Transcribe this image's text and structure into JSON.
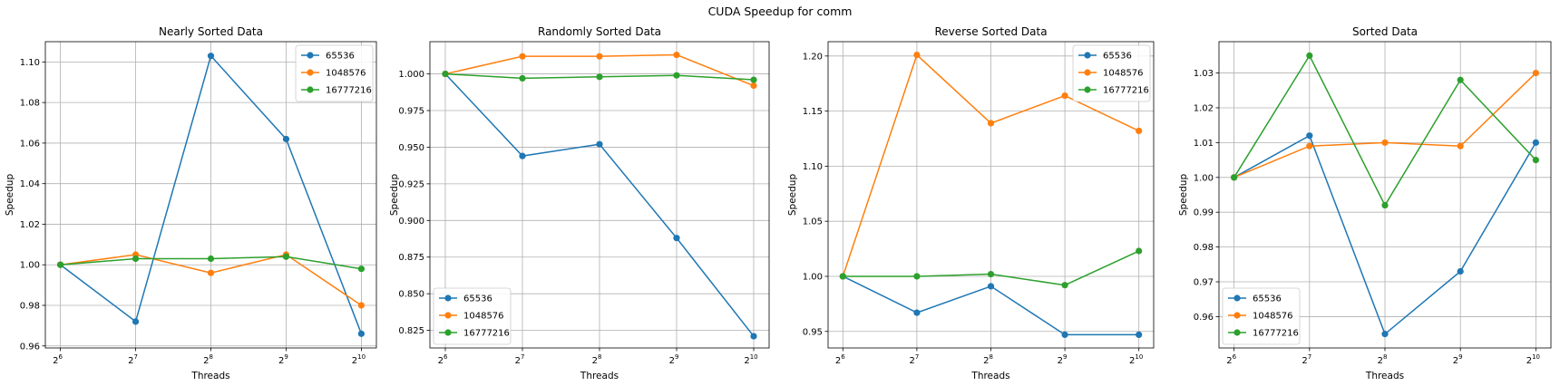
{
  "figure": {
    "title": "CUDA Speedup for comm"
  },
  "chart_data": [
    {
      "type": "line",
      "title": "Nearly Sorted Data",
      "xlabel": "Threads",
      "ylabel": "Speedup",
      "x": [
        6,
        7,
        8,
        9,
        10
      ],
      "x_base": "2",
      "x_scale": "log2",
      "ylim": [
        0.959,
        1.11
      ],
      "yticks": [
        0.96,
        0.98,
        1.0,
        1.02,
        1.04,
        1.06,
        1.08,
        1.1
      ],
      "ytick_labels": [
        "0.96",
        "0.98",
        "1.00",
        "1.02",
        "1.04",
        "1.06",
        "1.08",
        "1.10"
      ],
      "grid": true,
      "legend_position": "top-right",
      "series": [
        {
          "name": "65536",
          "color": "#1f77b4",
          "values": [
            1.0,
            0.972,
            1.103,
            1.062,
            0.966
          ]
        },
        {
          "name": "1048576",
          "color": "#ff7f0e",
          "values": [
            1.0,
            1.005,
            0.996,
            1.005,
            0.98
          ]
        },
        {
          "name": "16777216",
          "color": "#2ca02c",
          "values": [
            1.0,
            1.003,
            1.003,
            1.004,
            0.998
          ]
        }
      ]
    },
    {
      "type": "line",
      "title": "Randomly Sorted Data",
      "xlabel": "Threads",
      "ylabel": "Speedup",
      "x": [
        6,
        7,
        8,
        9,
        10
      ],
      "x_base": "2",
      "x_scale": "log2",
      "ylim": [
        0.813,
        1.022
      ],
      "yticks": [
        0.825,
        0.85,
        0.875,
        0.9,
        0.925,
        0.95,
        0.975,
        1.0
      ],
      "ytick_labels": [
        "0.825",
        "0.850",
        "0.875",
        "0.900",
        "0.925",
        "0.950",
        "0.975",
        "1.000"
      ],
      "grid": true,
      "legend_position": "bottom-left",
      "series": [
        {
          "name": "65536",
          "color": "#1f77b4",
          "values": [
            1.0,
            0.944,
            0.952,
            0.888,
            0.821
          ]
        },
        {
          "name": "1048576",
          "color": "#ff7f0e",
          "values": [
            1.0,
            1.012,
            1.012,
            1.013,
            0.992
          ]
        },
        {
          "name": "16777216",
          "color": "#2ca02c",
          "values": [
            1.0,
            0.997,
            0.998,
            0.999,
            0.996
          ]
        }
      ]
    },
    {
      "type": "line",
      "title": "Reverse Sorted Data",
      "xlabel": "Threads",
      "ylabel": "Speedup",
      "x": [
        6,
        7,
        8,
        9,
        10
      ],
      "x_base": "2",
      "x_scale": "log2",
      "ylim": [
        0.935,
        1.213
      ],
      "yticks": [
        0.95,
        1.0,
        1.05,
        1.1,
        1.15,
        1.2
      ],
      "ytick_labels": [
        "0.95",
        "1.00",
        "1.05",
        "1.10",
        "1.15",
        "1.20"
      ],
      "grid": true,
      "legend_position": "top-right",
      "series": [
        {
          "name": "65536",
          "color": "#1f77b4",
          "values": [
            1.0,
            0.967,
            0.991,
            0.947,
            0.947
          ]
        },
        {
          "name": "1048576",
          "color": "#ff7f0e",
          "values": [
            1.0,
            1.201,
            1.139,
            1.164,
            1.132
          ]
        },
        {
          "name": "16777216",
          "color": "#2ca02c",
          "values": [
            1.0,
            1.0,
            1.002,
            0.992,
            1.023
          ]
        }
      ]
    },
    {
      "type": "line",
      "title": "Sorted Data",
      "xlabel": "Threads",
      "ylabel": "Speedup",
      "x": [
        6,
        7,
        8,
        9,
        10
      ],
      "x_base": "2",
      "x_scale": "log2",
      "ylim": [
        0.951,
        1.039
      ],
      "yticks": [
        0.96,
        0.97,
        0.98,
        0.99,
        1.0,
        1.01,
        1.02,
        1.03
      ],
      "ytick_labels": [
        "0.96",
        "0.97",
        "0.98",
        "0.99",
        "1.00",
        "1.01",
        "1.02",
        "1.03"
      ],
      "grid": true,
      "legend_position": "bottom-left",
      "series": [
        {
          "name": "65536",
          "color": "#1f77b4",
          "values": [
            1.0,
            1.012,
            0.955,
            0.973,
            1.01
          ]
        },
        {
          "name": "1048576",
          "color": "#ff7f0e",
          "values": [
            1.0,
            1.009,
            1.01,
            1.009,
            1.03
          ]
        },
        {
          "name": "16777216",
          "color": "#2ca02c",
          "values": [
            1.0,
            1.035,
            0.992,
            1.028,
            1.005
          ]
        }
      ]
    }
  ]
}
